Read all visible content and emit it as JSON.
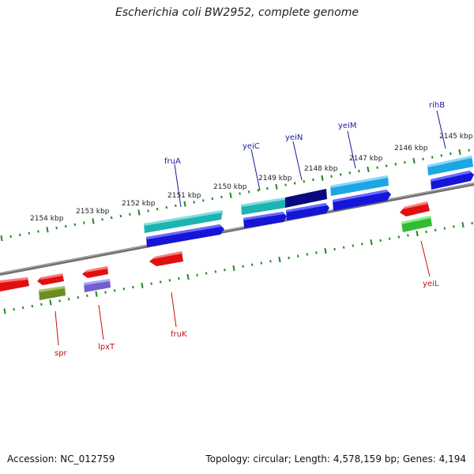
{
  "title": "Escherichia coli BW2952, complete genome",
  "footer": {
    "accession": "Accession: NC_012759",
    "topology": "Topology: circular; Length: 4,578,159 bp; Genes: 4,194"
  },
  "ticks": [
    "2154 kbp",
    "2153 kbp",
    "2152 kbp",
    "2151 kbp",
    "2150 kbp",
    "2149 kbp",
    "2148 kbp",
    "2147 kbp",
    "2146 kbp",
    "2145 kbp"
  ],
  "genes_top": [
    {
      "name": "fruA",
      "color": "#20b2b2"
    },
    {
      "name": "yeiC",
      "color": "#20b2b2"
    },
    {
      "name": "yeiN",
      "color": "#0a0a80"
    },
    {
      "name": "yeiM",
      "color": "#20a8e0"
    },
    {
      "name": "rihB",
      "color": "#20a8e0"
    }
  ],
  "genes_bottom": [
    {
      "name": "spr",
      "color": "#e01010"
    },
    {
      "name": "lpxT",
      "color": "#e01010"
    },
    {
      "name": "fruK",
      "color": "#e01010"
    },
    {
      "name": "yeiL",
      "color": "#e01010"
    }
  ],
  "colors": {
    "backbone": "#808080",
    "tick": "#228822",
    "label_top": "#1a1aa0",
    "label_bottom": "#c01010",
    "cds_blue": "#1515d8",
    "olive": "#6b8e23",
    "green": "#33bb33",
    "purple": "#7060d0",
    "red": "#e01010"
  }
}
